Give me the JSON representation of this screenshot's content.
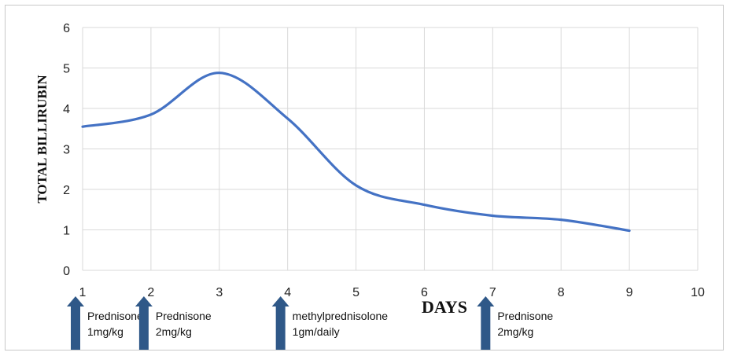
{
  "chart_data": {
    "type": "line",
    "title": "",
    "xlabel": "DAYS",
    "ylabel": "TOTAL BILLIRUBIN",
    "xlim": [
      1,
      10
    ],
    "ylim": [
      0,
      6
    ],
    "x_ticks": [
      "1",
      "2",
      "3",
      "4",
      "5",
      "6",
      "7",
      "8",
      "9",
      "10"
    ],
    "y_ticks": [
      "0",
      "1",
      "2",
      "3",
      "4",
      "5",
      "6"
    ],
    "grid": true,
    "legend": "none",
    "smooth": true,
    "series": [
      {
        "color": "#4472c4",
        "x": [
          1,
          2,
          3,
          4,
          5,
          6,
          7,
          8,
          9
        ],
        "y": [
          3.55,
          3.85,
          4.88,
          3.75,
          2.1,
          1.62,
          1.35,
          1.25,
          0.98
        ]
      }
    ],
    "annotations": [
      {
        "x": 1,
        "lines": [
          "Prednisone",
          "1mg/kg"
        ]
      },
      {
        "x": 2,
        "lines": [
          "Prednisone",
          "2mg/kg"
        ]
      },
      {
        "x": 4,
        "lines": [
          "methylprednisolone",
          "1gm/daily"
        ]
      },
      {
        "x": 7,
        "lines": [
          "Prednisone",
          "2mg/kg"
        ]
      }
    ],
    "arrow_color": "#2f5888"
  }
}
